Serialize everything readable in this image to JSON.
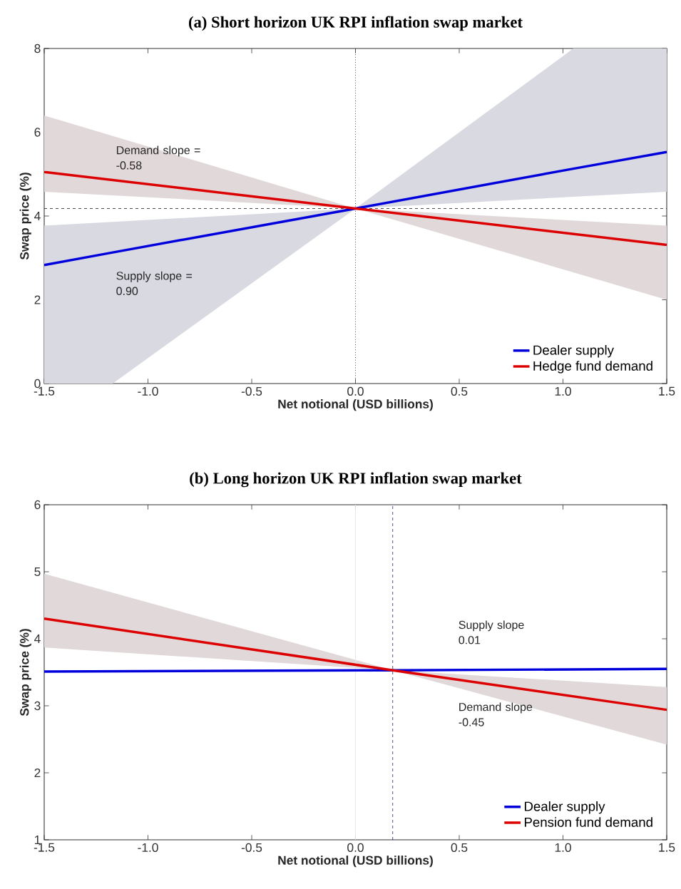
{
  "chart_data": [
    {
      "type": "line",
      "title": "(a) Short horizon UK RPI inflation swap market",
      "xlabel": "Net notional (USD billions)",
      "ylabel": "Swap price (%)",
      "xlim": [
        -1.5,
        1.5
      ],
      "ylim": [
        0,
        8
      ],
      "xticks": [
        -1.5,
        {
          "value": -1.0,
          "label": "-1.0"
        },
        -0.5,
        {
          "value": 0,
          "label": "0.0"
        },
        0.5,
        {
          "value": 1.0,
          "label": "1.0"
        },
        1.5
      ],
      "yticks": [
        0,
        2,
        4,
        6,
        8
      ],
      "series": [
        {
          "name": "Dealer supply",
          "color": "#0000dd",
          "x": [
            -1.5,
            -1.17,
            0,
            1.05,
            1.5
          ],
          "values": [
            2.83,
            3.13,
            4.18,
            5.13,
            5.53
          ],
          "lower": [
            0,
            0,
            4.18,
            4.46,
            4.58
          ],
          "upper": [
            3.77,
            3.86,
            4.18,
            8,
            8
          ]
        },
        {
          "name": "Hedge fund demand",
          "color": "#dd0000",
          "x": [
            -1.5,
            0,
            1.5
          ],
          "values": [
            5.05,
            4.18,
            3.31
          ],
          "lower": [
            4.58,
            4.18,
            2.0
          ],
          "upper": [
            6.4,
            4.18,
            3.77
          ]
        }
      ],
      "ref_lines": [
        {
          "axis": "x",
          "value": 0,
          "line_style": "dotted",
          "color": "#333333"
        },
        {
          "axis": "y",
          "value": 4.18,
          "line_style": "dashed",
          "color": "#333333"
        }
      ],
      "annotations": [
        "Demand slope = -0.58",
        "Supply slope = 0.90"
      ],
      "legend": "bottom right"
    },
    {
      "type": "line",
      "title": "(b) Long horizon UK RPI inflation swap market",
      "xlabel": "Net notional (USD billions)",
      "ylabel": "Swap price (%)",
      "xlim": [
        -1.5,
        1.5
      ],
      "ylim": [
        1,
        6
      ],
      "xticks": [
        -1.5,
        {
          "value": -1.0,
          "label": "-1.0"
        },
        -0.5,
        {
          "value": 0,
          "label": "0.0"
        },
        0.5,
        {
          "value": 1.0,
          "label": "1.0"
        },
        1.5
      ],
      "yticks": [
        1,
        2,
        3,
        4,
        5,
        6
      ],
      "series": [
        {
          "name": "Dealer supply",
          "color": "#0000dd",
          "x": [
            -1.5,
            0.18,
            1.5
          ],
          "values": [
            3.51,
            3.53,
            3.55
          ]
        },
        {
          "name": "Pension fund demand",
          "color": "#dd0000",
          "x": [
            -1.5,
            0.18,
            1.5
          ],
          "values": [
            4.3,
            3.53,
            2.94
          ],
          "lower": [
            3.87,
            3.53,
            2.42
          ],
          "upper": [
            4.97,
            3.53,
            3.28
          ]
        }
      ],
      "ref_lines": [
        {
          "axis": "x",
          "value": 0,
          "line_style": "solid",
          "color": "#e6e6e6"
        },
        {
          "axis": "x",
          "value": 0.18,
          "line_style": "dashed",
          "color": "#000066"
        }
      ],
      "annotations": [
        "Supply slope 0.01",
        "Demand slope -0.45"
      ],
      "legend": "bottom right"
    }
  ]
}
